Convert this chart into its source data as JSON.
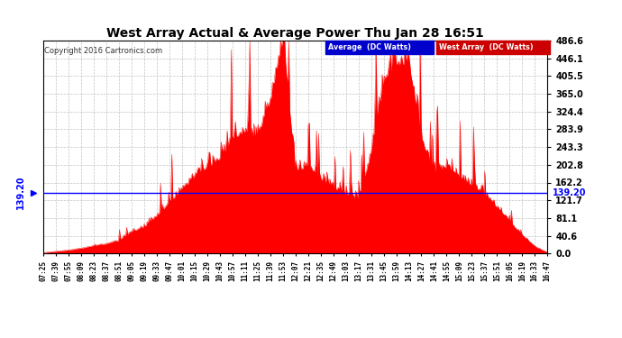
{
  "title": "West Array Actual & Average Power Thu Jan 28 16:51",
  "copyright": "Copyright 2016 Cartronics.com",
  "average_value": 139.2,
  "y_max": 486.6,
  "y_min": 0.0,
  "y_ticks": [
    0.0,
    40.6,
    81.1,
    121.7,
    162.2,
    202.8,
    243.3,
    283.9,
    324.4,
    365.0,
    405.5,
    446.1,
    486.6
  ],
  "bg_color": "#ffffff",
  "plot_bg_color": "#ffffff",
  "grid_color": "#bbbbbb",
  "fill_color": "#ff0000",
  "line_color": "#0000ff",
  "legend_avg_bg": "#0000cc",
  "legend_west_bg": "#cc0000",
  "title_color": "#000000",
  "x_labels": [
    "07:25",
    "07:39",
    "07:55",
    "08:09",
    "08:23",
    "08:37",
    "08:51",
    "09:05",
    "09:19",
    "09:33",
    "09:47",
    "10:01",
    "10:15",
    "10:29",
    "10:43",
    "10:57",
    "11:11",
    "11:25",
    "11:39",
    "11:53",
    "12:07",
    "12:21",
    "12:35",
    "12:49",
    "13:03",
    "13:17",
    "13:31",
    "13:45",
    "13:59",
    "14:13",
    "14:27",
    "14:41",
    "14:55",
    "15:09",
    "15:23",
    "15:37",
    "15:51",
    "16:05",
    "16:19",
    "16:33",
    "16:47"
  ],
  "base_values": [
    2,
    5,
    8,
    12,
    18,
    22,
    30,
    50,
    60,
    85,
    115,
    145,
    175,
    195,
    215,
    260,
    275,
    265,
    345,
    486,
    185,
    200,
    165,
    150,
    135,
    125,
    225,
    390,
    425,
    435,
    255,
    185,
    195,
    175,
    155,
    135,
    105,
    72,
    42,
    16,
    3
  ]
}
